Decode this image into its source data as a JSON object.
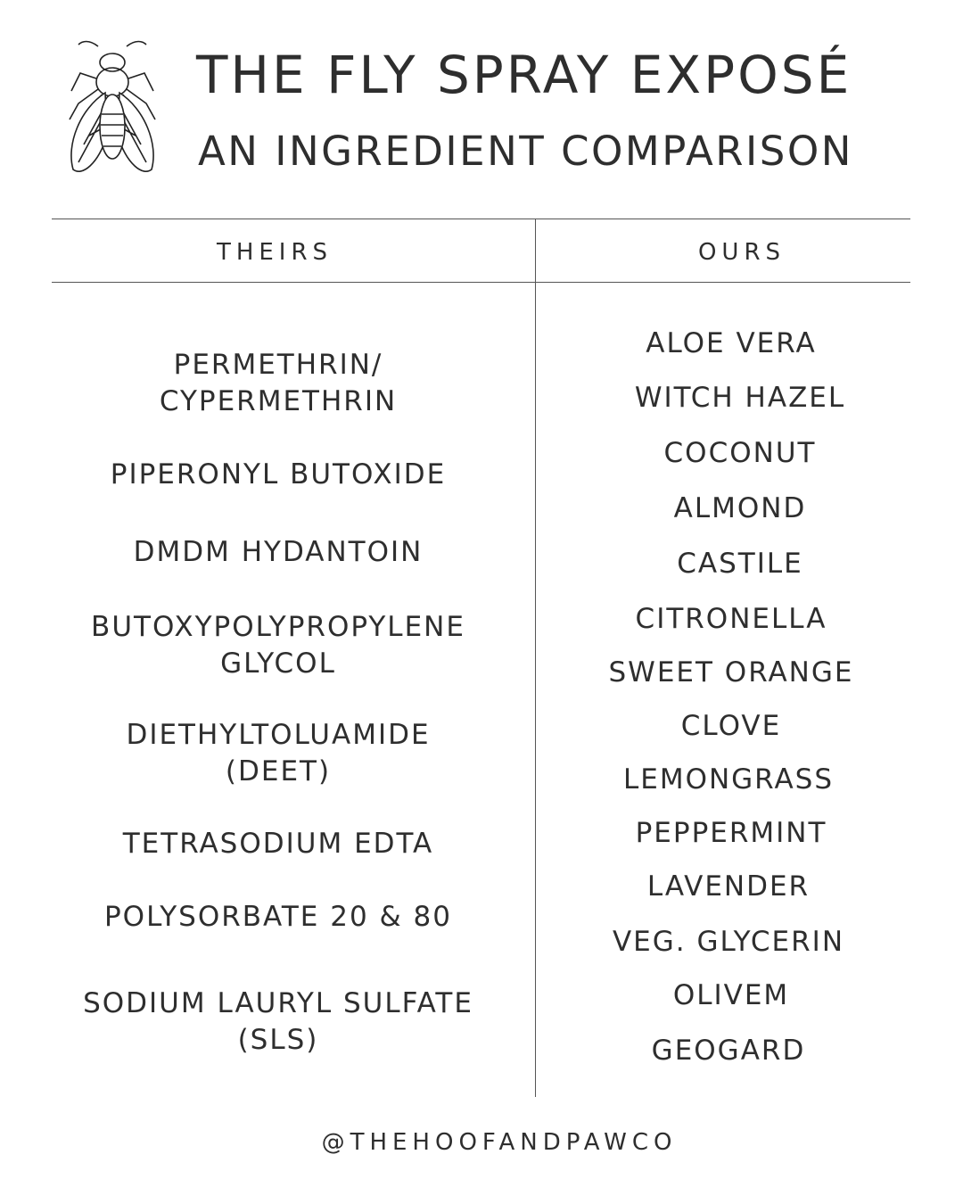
{
  "title": "THE FLY SPRAY EXPOSÉ",
  "subtitle": "AN INGREDIENT COMPARISON",
  "logo_icon": "fly-icon",
  "columns": {
    "theirs": "THEIRS",
    "ours": "OURS"
  },
  "theirs": [
    "PERMETHRIN/\nCYPERMETHRIN",
    "PIPERONYL BUTOXIDE",
    "DMDM HYDANTOIN",
    "BUTOXYPOLYPROPYLENE\nGLYCOL",
    "DIETHYLTOLUAMIDE\n(DEET)",
    "TETRASODIUM EDTA",
    "POLYSORBATE 20 & 80",
    "SODIUM LAURYL SULFATE\n(SLS)"
  ],
  "ours": [
    "ALOE VERA",
    "WITCH HAZEL",
    "COCONUT",
    "ALMOND",
    "CASTILE",
    "CITRONELLA",
    "SWEET ORANGE",
    "CLOVE",
    "LEMONGRASS",
    "PEPPERMINT",
    "LAVENDER",
    "VEG. GLYCERIN",
    "OLIVEM",
    "GEOGARD"
  ],
  "footer": "@THEHOOFANDPAWCO"
}
